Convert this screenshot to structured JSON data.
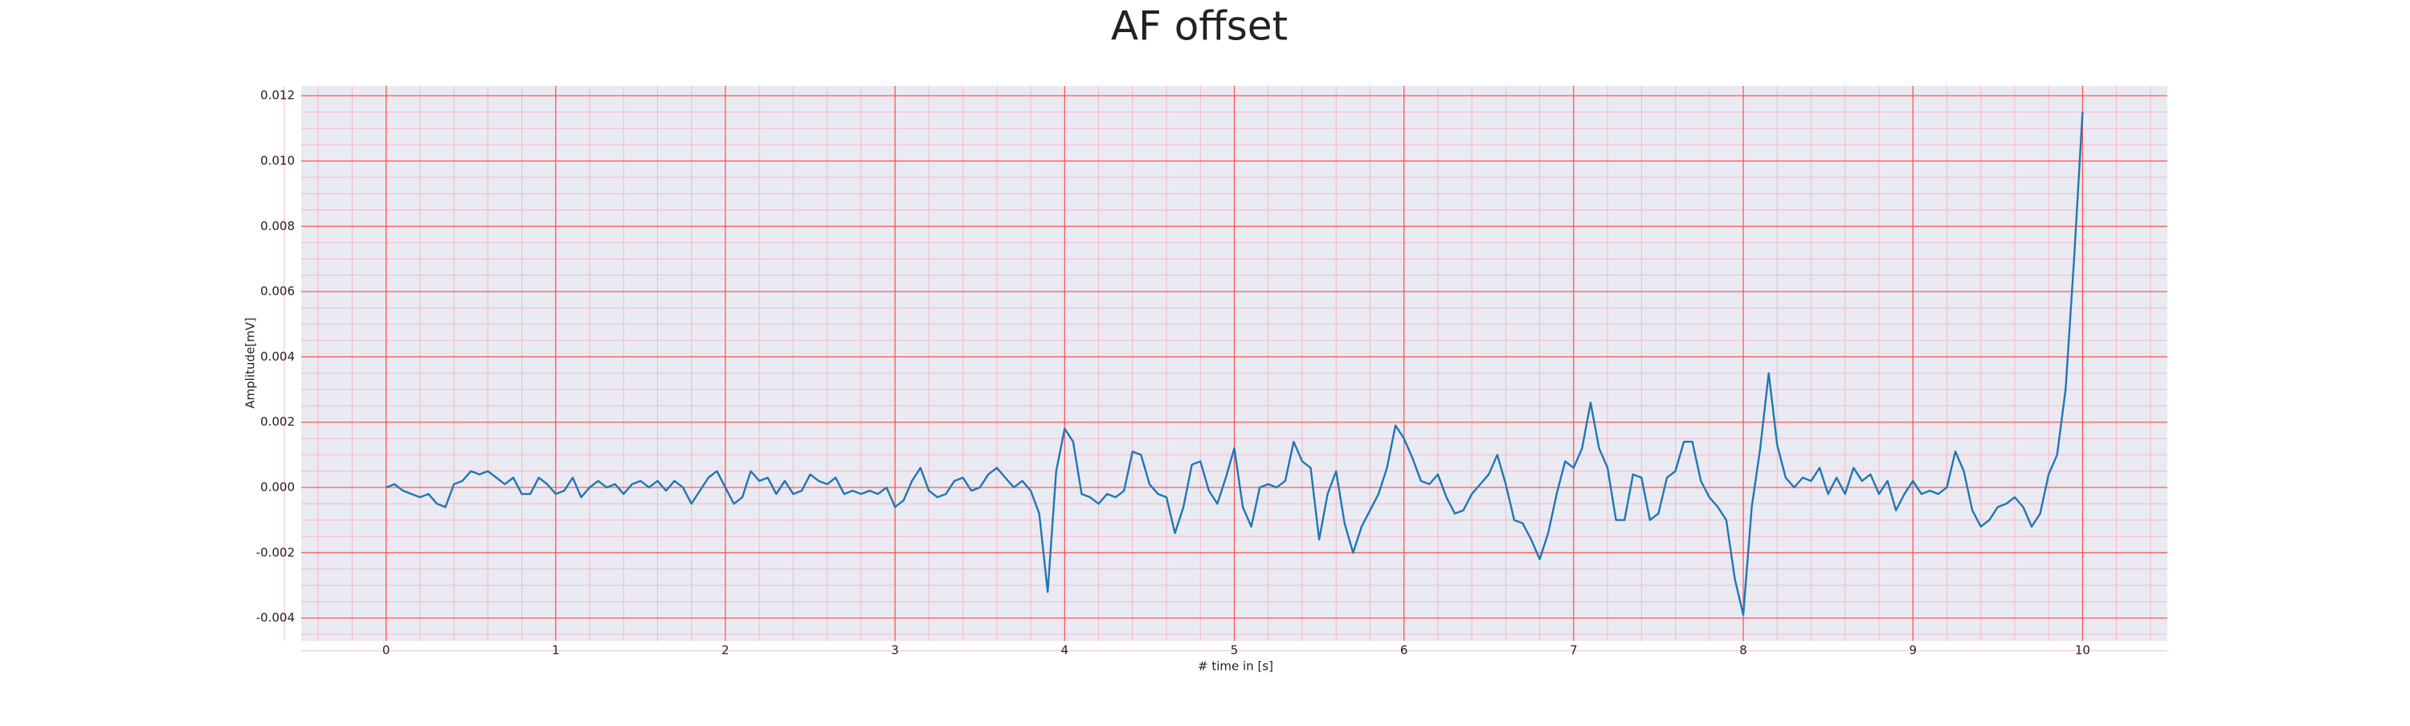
{
  "chart_data": {
    "type": "line",
    "title": "AF offset",
    "xlabel": "# time in [s]",
    "ylabel": "Amplitude[mV]",
    "xlim": [
      -0.5,
      10.5
    ],
    "ylim": [
      -0.0047,
      0.0123
    ],
    "xticks": [
      0,
      1,
      2,
      3,
      4,
      5,
      6,
      7,
      8,
      9,
      10
    ],
    "yticks": [
      -0.004,
      -0.002,
      {
        "value": 0,
        "label": "0.000"
      },
      0.002,
      0.004,
      0.006,
      0.008,
      {
        "value": 0.01,
        "label": "0.010"
      },
      0.012
    ],
    "grid": true,
    "minor_grid": {
      "x": 5,
      "y": 4
    },
    "background": "#eaeaf2",
    "grid_color": "#ff4d4d",
    "minor_grid_color": "#f5b8c8",
    "x": [
      0,
      0.05,
      0.1,
      0.15,
      0.2,
      0.25,
      0.3,
      0.35,
      0.4,
      0.45,
      0.5,
      0.55,
      0.6,
      0.65,
      0.7,
      0.75,
      0.8,
      0.85,
      0.9,
      0.95,
      1,
      1.05,
      1.1,
      1.15,
      1.2,
      1.25,
      1.3,
      1.35,
      1.4,
      1.45,
      1.5,
      1.55,
      1.6,
      1.65,
      1.7,
      1.75,
      1.8,
      1.85,
      1.9,
      1.95,
      2,
      2.05,
      2.1,
      2.15,
      2.2,
      2.25,
      2.3,
      2.35,
      2.4,
      2.45,
      2.5,
      2.55,
      2.6,
      2.65,
      2.7,
      2.75,
      2.8,
      2.85,
      2.9,
      2.95,
      3,
      3.05,
      3.1,
      3.15,
      3.2,
      3.25,
      3.3,
      3.35,
      3.4,
      3.45,
      3.5,
      3.55,
      3.6,
      3.65,
      3.7,
      3.75,
      3.8,
      3.85,
      3.9,
      3.95,
      4,
      4.05,
      4.1,
      4.15,
      4.2,
      4.25,
      4.3,
      4.35,
      4.4,
      4.45,
      4.5,
      4.55,
      4.6,
      4.65,
      4.7,
      4.75,
      4.8,
      4.85,
      4.9,
      4.95,
      5,
      5.05,
      5.1,
      5.15,
      5.2,
      5.25,
      5.3,
      5.35,
      5.4,
      5.45,
      5.5,
      5.55,
      5.6,
      5.65,
      5.7,
      5.75,
      5.8,
      5.85,
      5.9,
      5.95,
      6,
      6.05,
      6.1,
      6.15,
      6.2,
      6.25,
      6.3,
      6.35,
      6.4,
      6.45,
      6.5,
      6.55,
      6.6,
      6.65,
      6.7,
      6.75,
      6.8,
      6.85,
      6.9,
      6.95,
      7,
      7.05,
      7.1,
      7.15,
      7.2,
      7.25,
      7.3,
      7.35,
      7.4,
      7.45,
      7.5,
      7.55,
      7.6,
      7.65,
      7.7,
      7.75,
      7.8,
      7.85,
      7.9,
      7.95,
      8,
      8.05,
      8.1,
      8.15,
      8.2,
      8.25,
      8.3,
      8.35,
      8.4,
      8.45,
      8.5,
      8.55,
      8.6,
      8.65,
      8.7,
      8.75,
      8.8,
      8.85,
      8.9,
      8.95,
      9,
      9.05,
      9.1,
      9.15,
      9.2,
      9.25,
      9.3,
      9.35,
      9.4,
      9.45,
      9.5,
      9.55,
      9.6,
      9.65,
      9.7,
      9.75,
      9.8,
      9.85,
      9.9,
      9.95,
      10
    ],
    "series": [
      {
        "color": "#1f77b4",
        "values": [
          0,
          0.0001,
          -0.0001,
          -0.0002,
          -0.0003,
          -0.0002,
          -0.0005,
          -0.0006,
          0.0001,
          0.0002,
          0.0005,
          0.0004,
          0.0005,
          0.0003,
          0.0001,
          0.0003,
          -0.0002,
          -0.0002,
          0.0003,
          0.0001,
          -0.0002,
          -0.0001,
          0.0003,
          -0.0003,
          0,
          0.0002,
          0,
          0.0001,
          -0.0002,
          0.0001,
          0.0002,
          0,
          0.0002,
          -0.0001,
          0.0002,
          0,
          -0.0005,
          -0.0001,
          0.0003,
          0.0005,
          0,
          -0.0005,
          -0.0003,
          0.0005,
          0.0002,
          0.0003,
          -0.0002,
          0.0002,
          -0.0002,
          -0.0001,
          0.0004,
          0.0002,
          0.0001,
          0.0003,
          -0.0002,
          -0.0001,
          -0.0002,
          -0.0001,
          -0.0002,
          0,
          -0.0006,
          -0.0004,
          0.0002,
          0.0006,
          -0.0001,
          -0.0003,
          -0.0002,
          0.0002,
          0.0003,
          -0.0001,
          0,
          0.0004,
          0.0006,
          0.0003,
          0,
          0.0002,
          -0.0001,
          -0.0008,
          -0.0032,
          0.0005,
          0.0018,
          0.0014,
          -0.0002,
          -0.0003,
          -0.0005,
          -0.0002,
          -0.0003,
          -0.0001,
          0.0011,
          0.001,
          0.0001,
          -0.0002,
          -0.0003,
          -0.0014,
          -0.0006,
          0.0007,
          0.0008,
          -0.0001,
          -0.0005,
          0.0003,
          0.0012,
          -0.0006,
          -0.0012,
          0,
          0.0001,
          0,
          0.0002,
          0.0014,
          0.0008,
          0.0006,
          -0.0016,
          -0.0002,
          0.0005,
          -0.0011,
          -0.002,
          -0.0012,
          -0.0007,
          -0.0002,
          0.0006,
          0.0019,
          0.0015,
          0.0009,
          0.0002,
          0.0001,
          0.0004,
          -0.0003,
          -0.0008,
          -0.0007,
          -0.0002,
          0.0001,
          0.0004,
          0.001,
          0.0001,
          -0.001,
          -0.0011,
          -0.0016,
          -0.0022,
          -0.0014,
          -0.0002,
          0.0008,
          0.0006,
          0.0012,
          0.0026,
          0.0012,
          0.0006,
          -0.001,
          -0.001,
          0.0004,
          0.0003,
          -0.001,
          -0.0008,
          0.0003,
          0.0005,
          0.0014,
          0.0014,
          0.0002,
          -0.0003,
          -0.0006,
          -0.001,
          -0.0028,
          -0.0039,
          -0.0006,
          0.0012,
          0.0035,
          0.0013,
          0.0003,
          0,
          0.0003,
          0.0002,
          0.0006,
          -0.0002,
          0.0003,
          -0.0002,
          0.0006,
          0.0002,
          0.0004,
          -0.0002,
          0.0002,
          -0.0007,
          -0.0002,
          0.0002,
          -0.0002,
          -0.0001,
          -0.0002,
          0,
          0.0011,
          0.0005,
          -0.0007,
          -0.0012,
          -0.001,
          -0.0006,
          -0.0005,
          -0.0003,
          -0.0006,
          -0.0012,
          -0.0008,
          0.0004,
          0.001,
          0.003,
          0.007,
          0.0115
        ]
      }
    ]
  }
}
